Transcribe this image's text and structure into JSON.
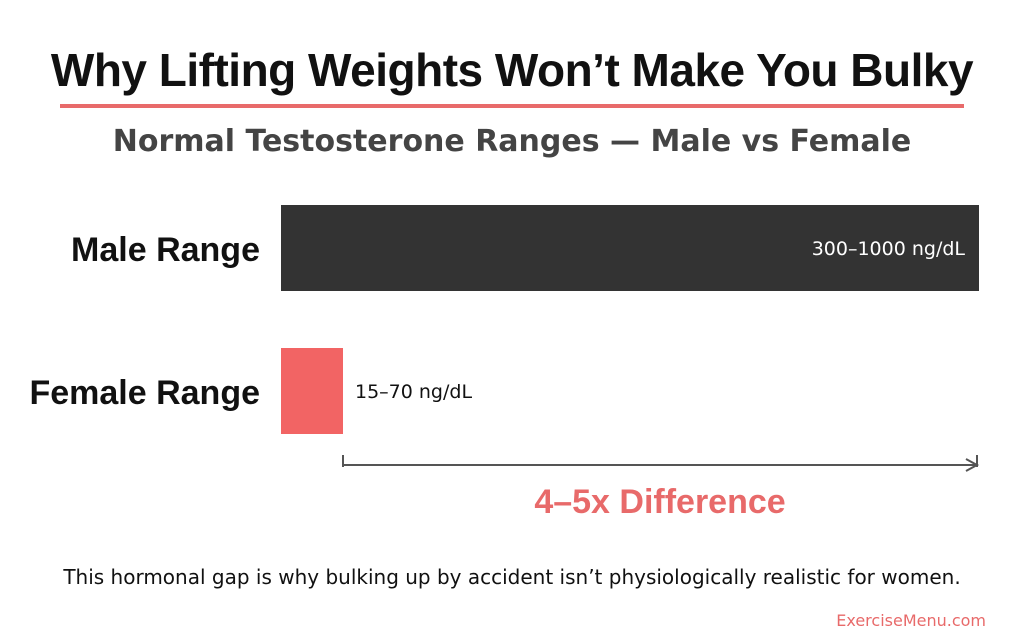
{
  "header": {
    "title": "Why Lifting Weights Won’t Make You Bulky",
    "subtitle": "Normal Testosterone Ranges — Male vs Female"
  },
  "chart_data": {
    "type": "bar",
    "orientation": "horizontal",
    "title": "Why Lifting Weights Won’t Make You Bulky",
    "subtitle": "Normal Testosterone Ranges — Male vs Female",
    "categories": [
      "Male Range",
      "Female Range"
    ],
    "values": [
      1000,
      70
    ],
    "ranges": [
      [
        300,
        1000
      ],
      [
        15,
        70
      ]
    ],
    "unit": "ng/dL",
    "data_labels": [
      "300–1000 ng/dL",
      "15–70 ng/dL"
    ],
    "colors": [
      "#333333",
      "#f26464"
    ],
    "xlim": [
      0,
      1000
    ],
    "grid": false,
    "annotation": {
      "text": "4–5x Difference",
      "from": 70,
      "to": 1000,
      "color": "#e86a6a"
    }
  },
  "footer": {
    "note": "This hormonal gap is why bulking up by accident isn’t physiologically realistic for women.",
    "credit": "ExerciseMenu.com"
  }
}
